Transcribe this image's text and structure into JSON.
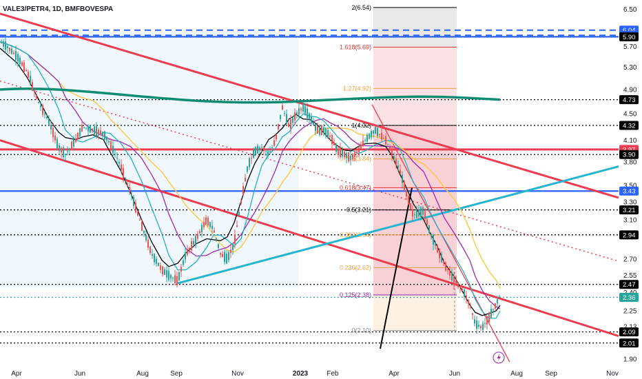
{
  "header": {
    "title": "VALE3/PETR4, 1D, BMFBOVESPA"
  },
  "colors": {
    "up": "#26a69a",
    "down": "#ef5350",
    "trend_red": "#ef3b4f",
    "cyan": "#26b5cf",
    "blue": "#2962ff",
    "dark_green": "#0d8c74",
    "black": "#000000",
    "purple": "#9c27b0",
    "yellow": "#f7cb4d",
    "teal_ma": "#23b0c0"
  },
  "chart_data": {
    "type": "candlestick",
    "symbol": "VALE3/PETR4",
    "interval": "1D",
    "exchange": "BMFBOVESPA",
    "ylim": [
      1.85,
      6.65
    ],
    "y_scale": "log",
    "x_ticks": [
      {
        "label": "Apr",
        "bold": false
      },
      {
        "label": "Jun",
        "bold": false
      },
      {
        "label": "Aug",
        "bold": false
      },
      {
        "label": "Sep",
        "bold": false
      },
      {
        "label": "Nov",
        "bold": false
      },
      {
        "label": "2023",
        "bold": true
      },
      {
        "label": "Feb",
        "bold": false
      },
      {
        "label": "Apr",
        "bold": false
      },
      {
        "label": "Jun",
        "bold": false
      },
      {
        "label": "Aug",
        "bold": false
      },
      {
        "label": "Sep",
        "bold": false
      },
      {
        "label": "Nov",
        "bold": false
      }
    ],
    "y_ticks": [
      "6.50",
      "5.70",
      "5.30",
      "4.90",
      "4.50",
      "4.10",
      "3.80",
      "3.50",
      "3.30",
      "3.10",
      "2.70",
      "2.55",
      "2.40",
      "2.25",
      "2.13",
      "1.90"
    ],
    "price_badges": [
      {
        "value": "6.04",
        "color": "#2962ff"
      },
      {
        "value": "5.93",
        "color": "#2962ff"
      },
      {
        "value": "5.90",
        "color": "#000000"
      },
      {
        "value": "4.73",
        "color": "#000000"
      },
      {
        "value": "4.32",
        "color": "#000000"
      },
      {
        "value": "3.97",
        "color": "#ef3b4f"
      },
      {
        "value": "3.90",
        "color": "#000000"
      },
      {
        "value": "3.43",
        "color": "#2962ff"
      },
      {
        "value": "3.21",
        "color": "#000000"
      },
      {
        "value": "2.94",
        "color": "#000000"
      },
      {
        "value": "2.47",
        "color": "#000000"
      },
      {
        "value": "2.36",
        "color": "#26a69a"
      },
      {
        "value": "2.09",
        "color": "#000000"
      },
      {
        "value": "2.01",
        "color": "#000000"
      }
    ],
    "fib_levels": [
      {
        "label": "2(6.54)",
        "value": 6.54,
        "color": "#000000"
      },
      {
        "label": "1.618(5.69)",
        "value": 5.69,
        "color": "#e03030"
      },
      {
        "label": "1.27(4.92)",
        "value": 4.92,
        "color": "#f0a040"
      },
      {
        "label": "1(4.32)",
        "value": 4.32,
        "color": "#000000"
      },
      {
        "label": "0.786(3.84)",
        "value": 3.84,
        "color": "#f0a040"
      },
      {
        "label": "0.618(3.47)",
        "value": 3.47,
        "color": "#e03030"
      },
      {
        "label": "0.5(3.21)",
        "value": 3.21,
        "color": "#000000"
      },
      {
        "label": "0.382(2.94)",
        "value": 2.94,
        "color": "#f0a040"
      },
      {
        "label": "0.236(2.62)",
        "value": 2.62,
        "color": "#f0a040"
      },
      {
        "label": "0.125(2.38)",
        "value": 2.38,
        "color": "#8e24aa"
      },
      {
        "label": "0(2.10)",
        "value": 2.1,
        "color": "#888888"
      }
    ],
    "horizontal_lines": [
      {
        "value": 6.04,
        "style": "dashed",
        "color": "#2962ff"
      },
      {
        "value": 5.93,
        "style": "dashed",
        "color": "#2962ff"
      },
      {
        "value": 5.9,
        "style": "solid",
        "color": "#2962ff"
      },
      {
        "value": 4.73,
        "style": "dotted",
        "color": "#000000"
      },
      {
        "value": 4.32,
        "style": "dotted",
        "color": "#000000"
      },
      {
        "value": 3.97,
        "style": "solid",
        "color": "#ef3b4f"
      },
      {
        "value": 3.9,
        "style": "dotted",
        "color": "#000000"
      },
      {
        "value": 3.43,
        "style": "solid",
        "color": "#2962ff"
      },
      {
        "value": 3.21,
        "style": "dotted",
        "color": "#000000"
      },
      {
        "value": 2.94,
        "style": "dotted",
        "color": "#000000"
      },
      {
        "value": 2.47,
        "style": "dotted",
        "color": "#000000"
      },
      {
        "value": 2.36,
        "style": "dotted",
        "color": "#26a69a"
      },
      {
        "value": 2.09,
        "style": "dotted",
        "color": "#000000"
      },
      {
        "value": 2.01,
        "style": "dotted",
        "color": "#000000"
      }
    ],
    "price_path": [
      [
        0,
        5.8
      ],
      [
        10,
        5.7
      ],
      [
        25,
        5.5
      ],
      [
        40,
        5.2
      ],
      [
        55,
        4.7
      ],
      [
        70,
        4.4
      ],
      [
        85,
        4.0
      ],
      [
        95,
        3.9
      ],
      [
        110,
        4.1
      ],
      [
        120,
        4.3
      ],
      [
        135,
        4.25
      ],
      [
        150,
        4.2
      ],
      [
        160,
        4.05
      ],
      [
        175,
        3.75
      ],
      [
        190,
        3.4
      ],
      [
        205,
        3.05
      ],
      [
        220,
        2.75
      ],
      [
        235,
        2.6
      ],
      [
        245,
        2.55
      ],
      [
        258,
        2.5
      ],
      [
        270,
        2.75
      ],
      [
        285,
        2.9
      ],
      [
        300,
        3.1
      ],
      [
        310,
        3.0
      ],
      [
        320,
        2.75
      ],
      [
        330,
        2.7
      ],
      [
        340,
        2.85
      ],
      [
        350,
        3.3
      ],
      [
        360,
        3.75
      ],
      [
        370,
        3.95
      ],
      [
        380,
        4.0
      ],
      [
        390,
        3.9
      ],
      [
        400,
        4.1
      ],
      [
        410,
        4.6
      ],
      [
        420,
        4.3
      ],
      [
        430,
        4.5
      ],
      [
        440,
        4.6
      ],
      [
        450,
        4.45
      ],
      [
        460,
        4.25
      ],
      [
        470,
        4.25
      ],
      [
        480,
        4.15
      ],
      [
        490,
        3.95
      ],
      [
        500,
        3.9
      ],
      [
        510,
        3.85
      ],
      [
        520,
        3.95
      ],
      [
        530,
        4.1
      ],
      [
        545,
        4.25
      ],
      [
        560,
        4.1
      ],
      [
        570,
        3.9
      ],
      [
        580,
        3.7
      ],
      [
        590,
        3.4
      ],
      [
        600,
        3.15
      ],
      [
        615,
        3.2
      ],
      [
        625,
        2.95
      ],
      [
        635,
        2.8
      ],
      [
        645,
        2.65
      ],
      [
        660,
        2.5
      ],
      [
        672,
        2.42
      ],
      [
        682,
        2.3
      ],
      [
        690,
        2.15
      ],
      [
        700,
        2.12
      ],
      [
        710,
        2.2
      ],
      [
        720,
        2.3
      ],
      [
        726,
        2.38
      ]
    ]
  }
}
